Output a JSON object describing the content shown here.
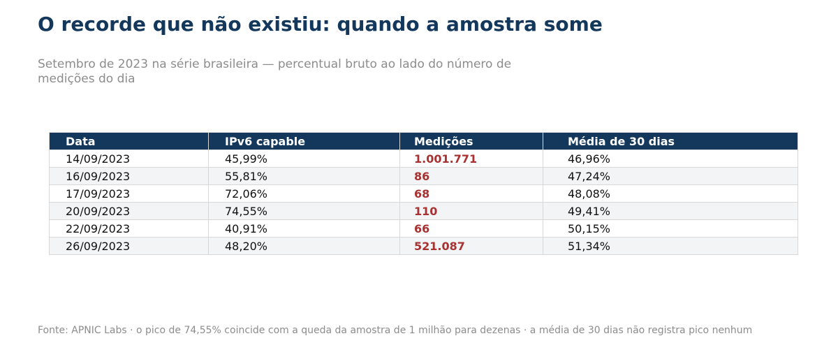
{
  "title": "O recorde que não existiu: quando a amostra some",
  "subtitle": "Setembro de 2023 na série brasileira — percentual bruto ao lado do número de medições do dia",
  "source": "Fonte: APNIC Labs · o pico de 74,55% coincide com a queda da amostra de 1 milhão para dezenas · a média de 30 dias não registra pico nenhum",
  "colors": {
    "header_bg": "#14385c",
    "title": "#14385c",
    "highlight": "#a83232",
    "muted_text": "#8c8c8c",
    "stripe": "#f3f4f6"
  },
  "chart_data": {
    "type": "table",
    "columns": [
      "Data",
      "IPv6 capable",
      "Medições",
      "Média de 30 dias"
    ],
    "highlight_column": 2,
    "rows": [
      [
        "14/09/2023",
        "45,99%",
        "1.001.771",
        "46,96%"
      ],
      [
        "16/09/2023",
        "55,81%",
        "86",
        "47,24%"
      ],
      [
        "17/09/2023",
        "72,06%",
        "68",
        "48,08%"
      ],
      [
        "20/09/2023",
        "74,55%",
        "110",
        "49,41%"
      ],
      [
        "22/09/2023",
        "40,91%",
        "66",
        "50,15%"
      ],
      [
        "26/09/2023",
        "48,20%",
        "521.087",
        "51,34%"
      ]
    ]
  }
}
